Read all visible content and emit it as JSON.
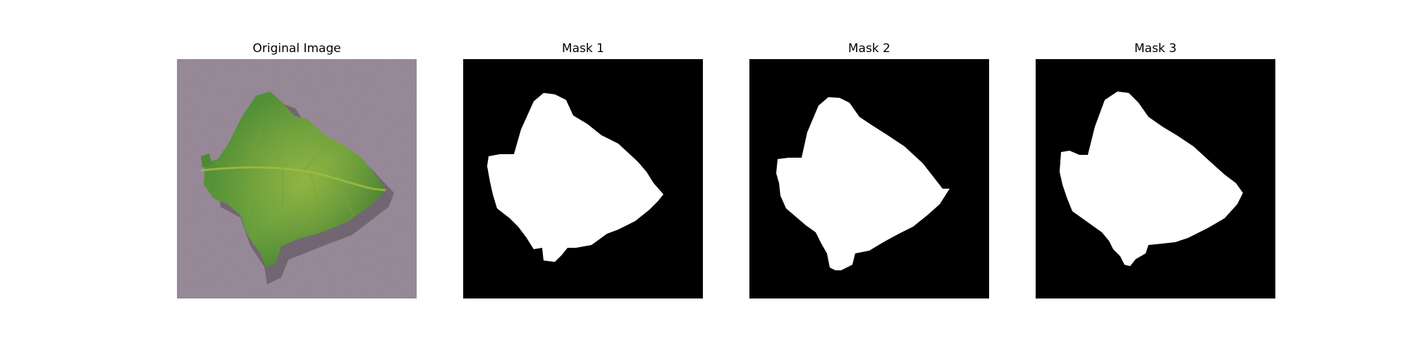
{
  "figure": {
    "panels": [
      {
        "title": "Original Image",
        "kind": "photo",
        "subject": "leaf-on-purple-background"
      },
      {
        "title": "Mask 1",
        "kind": "mask"
      },
      {
        "title": "Mask 2",
        "kind": "mask"
      },
      {
        "title": "Mask 3",
        "kind": "mask"
      }
    ]
  },
  "colors": {
    "mask_foreground": "#ffffff",
    "mask_background": "#000000",
    "photo_background": "#9a8c9a",
    "leaf_dark": "#356b2d",
    "leaf_mid": "#4e8a36",
    "leaf_light": "#9fbc3e"
  }
}
